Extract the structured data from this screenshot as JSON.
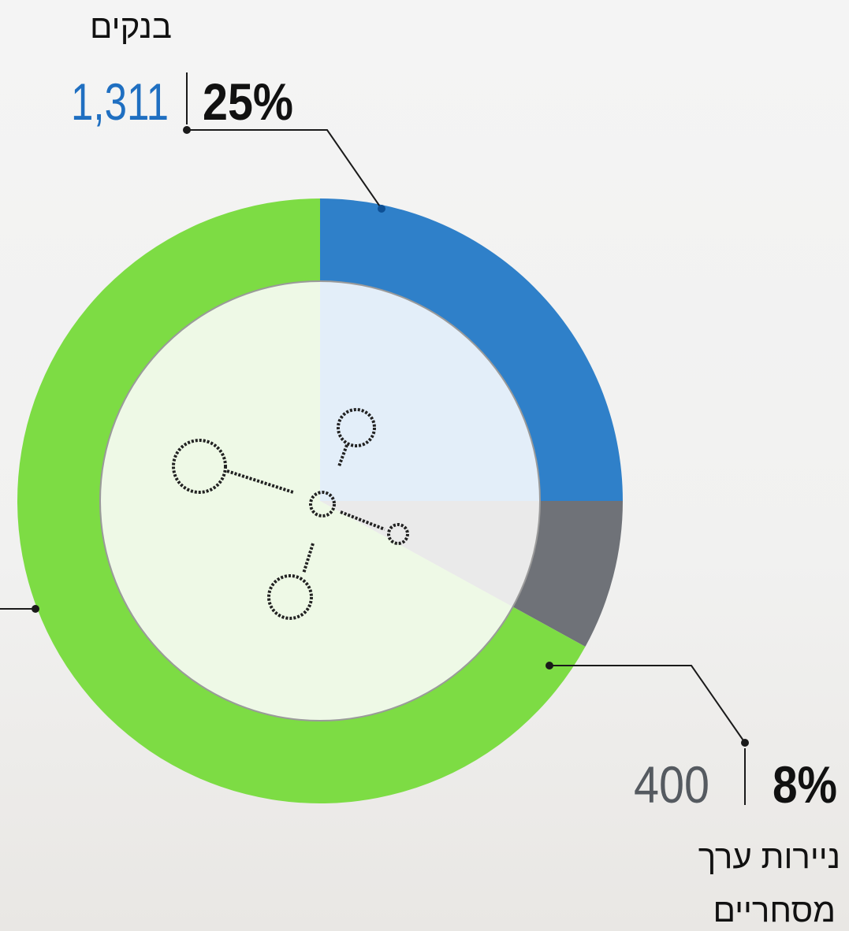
{
  "chart_data": {
    "type": "donut",
    "categories": [
      "בנקים",
      "ניירות ערך מסחריים",
      null
    ],
    "label_lines": [
      [
        "בנקים"
      ],
      [
        "ניירות ערך",
        "מסחריים"
      ],
      null
    ],
    "values": [
      25,
      8,
      67
    ],
    "value_labels": [
      "25%",
      "8%",
      null
    ],
    "amounts": [
      1311,
      400,
      null
    ],
    "amount_labels": [
      "1,311",
      "400",
      null
    ],
    "colors": [
      "#2f80c9",
      "#6f7278",
      "#7ddc44"
    ],
    "inner_colors": [
      "#e3eef9",
      "#eaeaea",
      "#eef9e6"
    ]
  }
}
